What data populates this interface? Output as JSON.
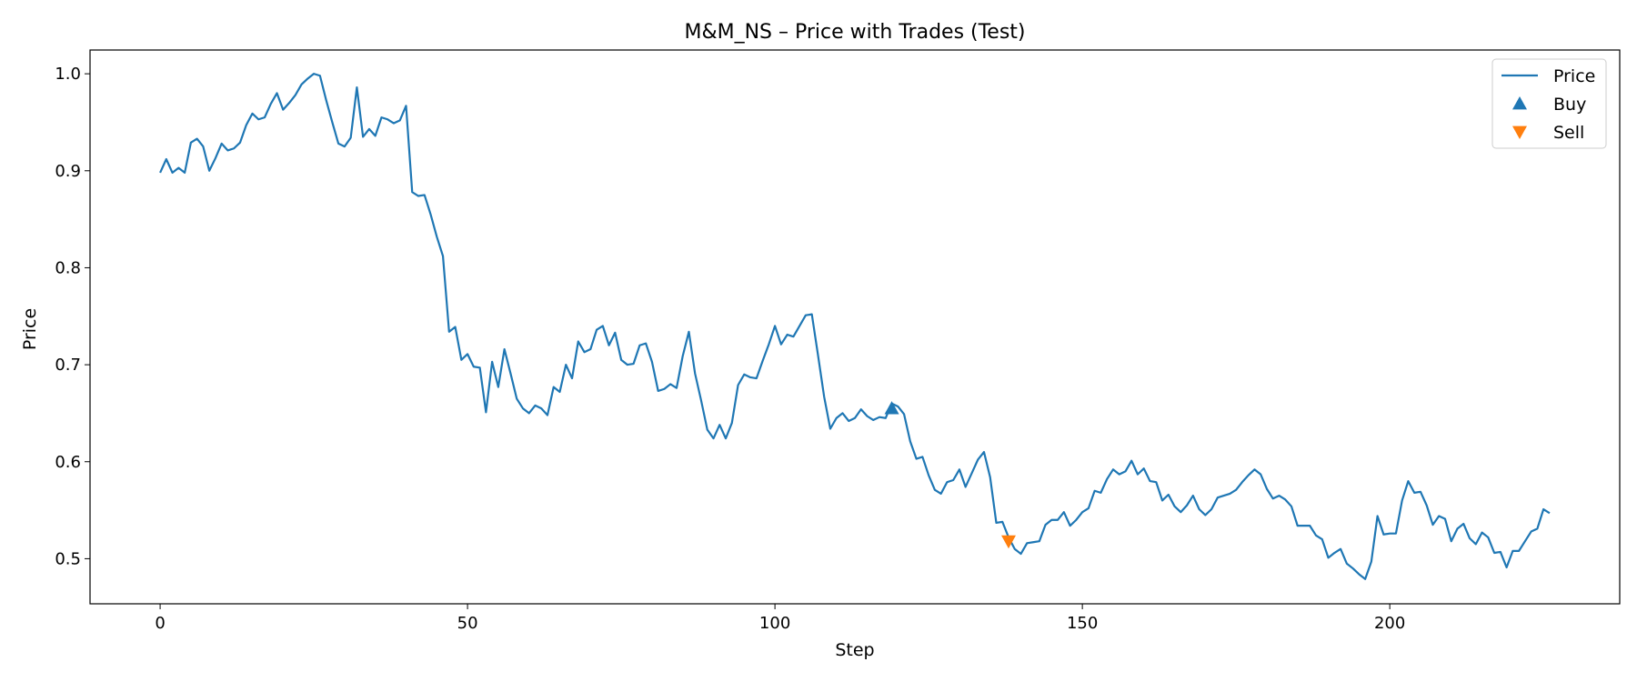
{
  "chart_data": {
    "type": "line",
    "title": "M&M_NS – Price with Trades (Test)",
    "xlabel": "Step",
    "ylabel": "Price",
    "xlim": [
      -11.4,
      237.4
    ],
    "ylim": [
      0.4535,
      1.0245
    ],
    "xticks": [
      0,
      50,
      100,
      150,
      200
    ],
    "yticks": [
      0.5,
      0.6,
      0.7,
      0.8,
      0.9,
      1.0
    ],
    "ytick_labels": [
      "0.5",
      "0.6",
      "0.7",
      "0.8",
      "0.9",
      "1.0"
    ],
    "grid": false,
    "legend_position": "top-right",
    "colors": {
      "price": "#1f77b4",
      "buy": "#1f77b4",
      "sell": "#ff7f0e"
    },
    "series": [
      {
        "name": "Price",
        "kind": "line",
        "x": [
          0,
          1,
          2,
          3,
          4,
          5,
          6,
          7,
          8,
          9,
          10,
          11,
          12,
          13,
          14,
          15,
          16,
          17,
          18,
          19,
          20,
          21,
          22,
          23,
          24,
          25,
          26,
          27,
          28,
          29,
          30,
          31,
          32,
          33,
          34,
          35,
          36,
          37,
          38,
          39,
          40,
          41,
          42,
          43,
          44,
          45,
          46,
          47,
          48,
          49,
          50,
          51,
          52,
          53,
          54,
          55,
          56,
          57,
          58,
          59,
          60,
          61,
          62,
          63,
          64,
          65,
          66,
          67,
          68,
          69,
          70,
          71,
          72,
          73,
          74,
          75,
          76,
          77,
          78,
          79,
          80,
          81,
          82,
          83,
          84,
          85,
          86,
          87,
          88,
          89,
          90,
          91,
          92,
          93,
          94,
          95,
          96,
          97,
          98,
          99,
          100,
          101,
          102,
          103,
          104,
          105,
          106,
          107,
          108,
          109,
          110,
          111,
          112,
          113,
          114,
          115,
          116,
          117,
          118,
          119,
          120,
          121,
          122,
          123,
          124,
          125,
          126,
          127,
          128,
          129,
          130,
          131,
          132,
          133,
          134,
          135,
          136,
          137,
          138,
          139,
          140,
          141,
          142,
          143,
          144,
          145,
          146,
          147,
          148,
          149,
          150,
          151,
          152,
          153,
          154,
          155,
          156,
          157,
          158,
          159,
          160,
          161,
          162,
          163,
          164,
          165,
          166,
          167,
          168,
          169,
          170,
          171,
          172,
          173,
          174,
          175,
          176,
          177,
          178,
          179,
          180,
          181,
          182,
          183,
          184,
          185,
          186,
          187,
          188,
          189,
          190,
          191,
          192,
          193,
          194,
          195,
          196,
          197,
          198,
          199,
          200,
          201,
          202,
          203,
          204,
          205,
          206,
          207,
          208,
          209,
          210,
          211,
          212,
          213,
          214,
          215,
          216,
          217,
          218,
          219,
          220,
          221,
          222,
          223,
          224,
          225,
          226
        ],
        "y": [
          0.898,
          0.912,
          0.898,
          0.903,
          0.898,
          0.929,
          0.933,
          0.925,
          0.9,
          0.913,
          0.928,
          0.921,
          0.923,
          0.929,
          0.947,
          0.959,
          0.953,
          0.955,
          0.969,
          0.98,
          0.963,
          0.97,
          0.978,
          0.989,
          0.995,
          1.0,
          0.998,
          0.973,
          0.95,
          0.928,
          0.925,
          0.934,
          0.986,
          0.935,
          0.943,
          0.936,
          0.955,
          0.953,
          0.949,
          0.952,
          0.967,
          0.878,
          0.874,
          0.875,
          0.855,
          0.832,
          0.812,
          0.734,
          0.739,
          0.705,
          0.711,
          0.698,
          0.697,
          0.651,
          0.703,
          0.677,
          0.716,
          0.691,
          0.665,
          0.655,
          0.65,
          0.658,
          0.655,
          0.648,
          0.677,
          0.672,
          0.7,
          0.686,
          0.724,
          0.713,
          0.716,
          0.736,
          0.74,
          0.72,
          0.733,
          0.705,
          0.7,
          0.701,
          0.72,
          0.722,
          0.703,
          0.673,
          0.675,
          0.68,
          0.676,
          0.709,
          0.734,
          0.691,
          0.663,
          0.633,
          0.624,
          0.638,
          0.624,
          0.64,
          0.679,
          0.69,
          0.687,
          0.686,
          0.704,
          0.721,
          0.74,
          0.721,
          0.731,
          0.729,
          0.74,
          0.751,
          0.752,
          0.71,
          0.667,
          0.634,
          0.645,
          0.65,
          0.642,
          0.645,
          0.654,
          0.647,
          0.643,
          0.646,
          0.645,
          0.66,
          0.657,
          0.649,
          0.621,
          0.603,
          0.605,
          0.586,
          0.571,
          0.567,
          0.579,
          0.581,
          0.592,
          0.574,
          0.588,
          0.602,
          0.61,
          0.584,
          0.537,
          0.538,
          0.522,
          0.51,
          0.505,
          0.516,
          0.517,
          0.518,
          0.535,
          0.54,
          0.54,
          0.548,
          0.534,
          0.54,
          0.548,
          0.552,
          0.57,
          0.568,
          0.582,
          0.592,
          0.587,
          0.59,
          0.601,
          0.587,
          0.593,
          0.58,
          0.579,
          0.56,
          0.566,
          0.554,
          0.548,
          0.555,
          0.565,
          0.551,
          0.545,
          0.551,
          0.563,
          0.565,
          0.567,
          0.571,
          0.579,
          0.586,
          0.592,
          0.587,
          0.572,
          0.562,
          0.565,
          0.561,
          0.554,
          0.534,
          0.534,
          0.534,
          0.524,
          0.52,
          0.501,
          0.506,
          0.51,
          0.495,
          0.49,
          0.484,
          0.479,
          0.497,
          0.544,
          0.525,
          0.526,
          0.526,
          0.56,
          0.58,
          0.568,
          0.569,
          0.555,
          0.535,
          0.544,
          0.541,
          0.518,
          0.531,
          0.536,
          0.521,
          0.515,
          0.527,
          0.522,
          0.506,
          0.507,
          0.491,
          0.508,
          0.508,
          0.518,
          0.528,
          0.531,
          0.551,
          0.547
        ]
      },
      {
        "name": "Buy",
        "kind": "marker",
        "marker": "triangle-up",
        "x": [
          119
        ],
        "y": [
          0.655
        ]
      },
      {
        "name": "Sell",
        "kind": "marker",
        "marker": "triangle-down",
        "x": [
          138
        ],
        "y": [
          0.518
        ]
      }
    ]
  }
}
